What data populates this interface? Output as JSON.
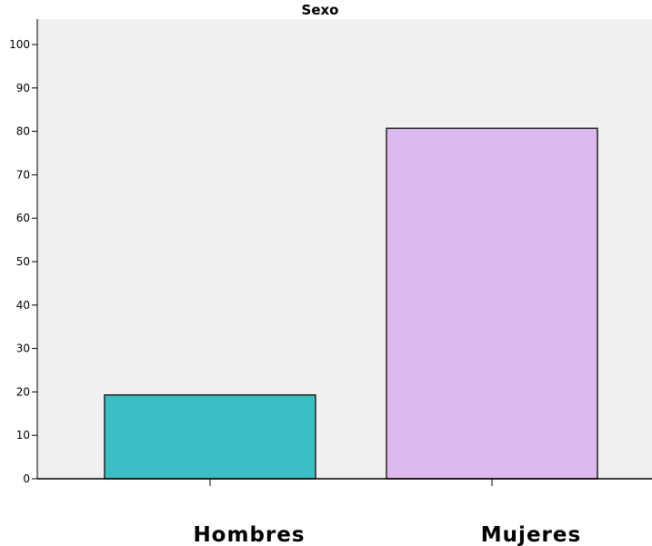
{
  "chart_data": {
    "type": "bar",
    "title": "Sexo",
    "categories": [
      "Hombres",
      "Mujeres"
    ],
    "values": [
      19.3,
      80.7
    ],
    "colors": [
      "#3bbfc5",
      "#dcb9ee"
    ],
    "xlabel": "",
    "ylabel": "",
    "ylim": [
      0,
      100
    ],
    "yticks": [
      0,
      10,
      20,
      30,
      40,
      50,
      60,
      70,
      80,
      90,
      100
    ],
    "grid": false,
    "legend": "none",
    "plot_background": "#f0f0f0",
    "bar_edge_color": "#222222"
  }
}
